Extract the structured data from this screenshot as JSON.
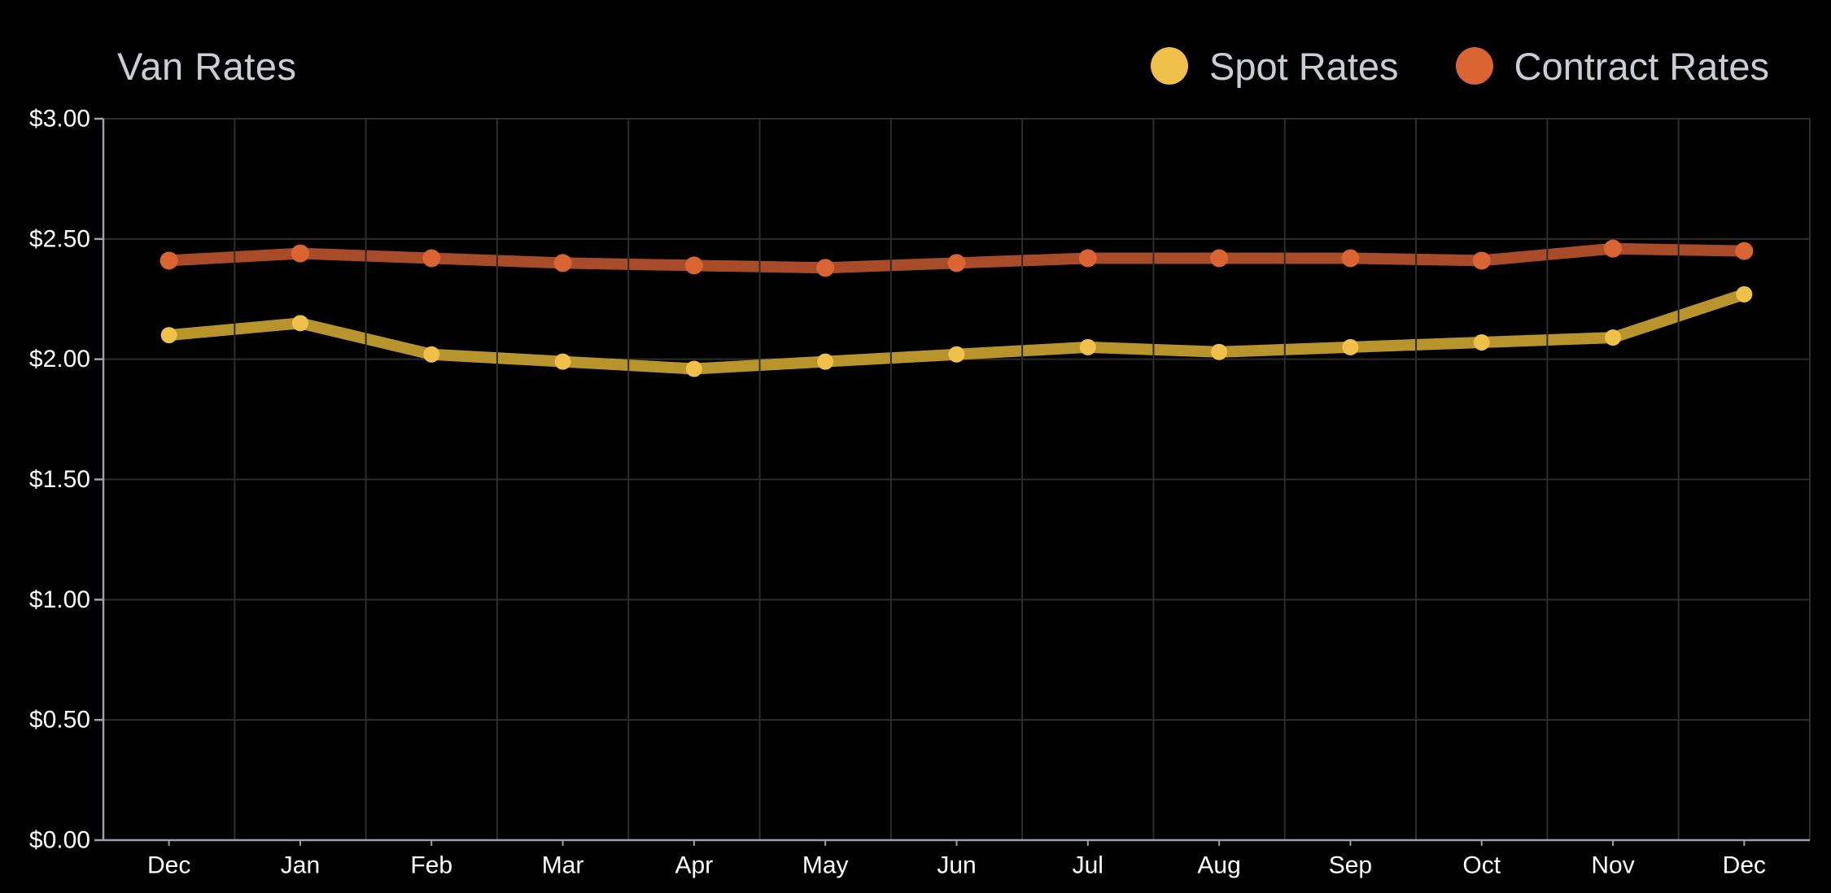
{
  "header": {
    "title": "Van Rates",
    "legend": [
      {
        "label": "Spot Rates",
        "color": "#EFC04A"
      },
      {
        "label": "Contract Rates",
        "color": "#DB6433"
      }
    ]
  },
  "chart_data": {
    "type": "line",
    "title": "Van Rates",
    "categories": [
      "Dec",
      "Jan",
      "Feb",
      "Mar",
      "Apr",
      "May",
      "Jun",
      "Jul",
      "Aug",
      "Sep",
      "Oct",
      "Nov",
      "Dec"
    ],
    "series": [
      {
        "name": "Spot Rates",
        "values": [
          2.1,
          2.15,
          2.02,
          1.99,
          1.96,
          1.99,
          2.02,
          2.05,
          2.03,
          2.05,
          2.07,
          2.09,
          2.27
        ],
        "line_color": "#B8942C",
        "point_color": "#EFC04A"
      },
      {
        "name": "Contract Rates",
        "values": [
          2.41,
          2.44,
          2.42,
          2.4,
          2.39,
          2.38,
          2.4,
          2.42,
          2.42,
          2.42,
          2.41,
          2.46,
          2.45
        ],
        "line_color": "#A84B28",
        "point_color": "#DB6433"
      }
    ],
    "xlabel": "",
    "ylabel": "",
    "ylim": [
      0,
      3
    ],
    "ytick_step": 0.5,
    "ytick_labels": [
      "$0.00",
      "$0.50",
      "$1.00",
      "$1.50",
      "$2.00",
      "$2.50",
      "$3.00"
    ],
    "grid": true,
    "legend_position": "top-right",
    "style": {
      "background": "#000000",
      "grid_color": "#2D2D2D",
      "axis_color": "#9BA1A6",
      "tick_label_color": "#FFFFFF",
      "title_color": "#C9CED5"
    }
  }
}
